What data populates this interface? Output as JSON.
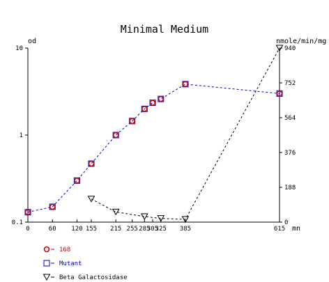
{
  "chart_data": {
    "type": "line",
    "title": "Minimal Medium",
    "ylabel_left": "od",
    "ylabel_right": "nmole/min/mg",
    "xunit": "mn",
    "x_ticks": [
      0,
      60,
      120,
      155,
      215,
      255,
      285,
      305,
      325,
      385,
      615
    ],
    "x_tick_labels": [
      "0",
      "60",
      "120",
      "155",
      "215",
      "255",
      "285",
      "305",
      "325",
      "385",
      "615"
    ],
    "xlim": [
      0,
      615
    ],
    "y_left": {
      "scale": "log",
      "range": [
        0.1,
        10
      ],
      "ticks": [
        0.1,
        1,
        10
      ],
      "tick_labels": [
        "0.1",
        "1",
        "10"
      ]
    },
    "y_right": {
      "scale": "linear",
      "range": [
        0,
        940
      ],
      "ticks": [
        0,
        188,
        376,
        564,
        752,
        940
      ],
      "tick_labels": [
        "0",
        "188",
        "376",
        "564",
        "752",
        "940"
      ]
    },
    "legend_position": "bottom-left",
    "series": [
      {
        "name": "168",
        "axis": "left",
        "marker": "circle",
        "color": "#cc0000",
        "x": [
          0,
          60,
          120,
          155,
          215,
          255,
          285,
          305,
          325,
          385,
          615
        ],
        "y": [
          0.13,
          0.15,
          0.3,
          0.47,
          1.0,
          1.45,
          2.0,
          2.35,
          2.6,
          3.85,
          3.0
        ]
      },
      {
        "name": "Mutant",
        "axis": "left",
        "marker": "square",
        "color": "#0000cc",
        "line_color": "#0000cc",
        "x": [
          0,
          60,
          120,
          155,
          215,
          255,
          285,
          305,
          325,
          385,
          615
        ],
        "y": [
          0.13,
          0.15,
          0.3,
          0.47,
          1.0,
          1.45,
          2.0,
          2.35,
          2.6,
          3.85,
          3.0
        ]
      },
      {
        "name": "Beta Galactosidase",
        "axis": "right",
        "marker": "triangle-down",
        "color": "#000000",
        "line_color": "#000000",
        "x": [
          155,
          215,
          285,
          325,
          385,
          615
        ],
        "y": [
          125,
          55,
          30,
          20,
          15,
          940
        ]
      }
    ]
  }
}
